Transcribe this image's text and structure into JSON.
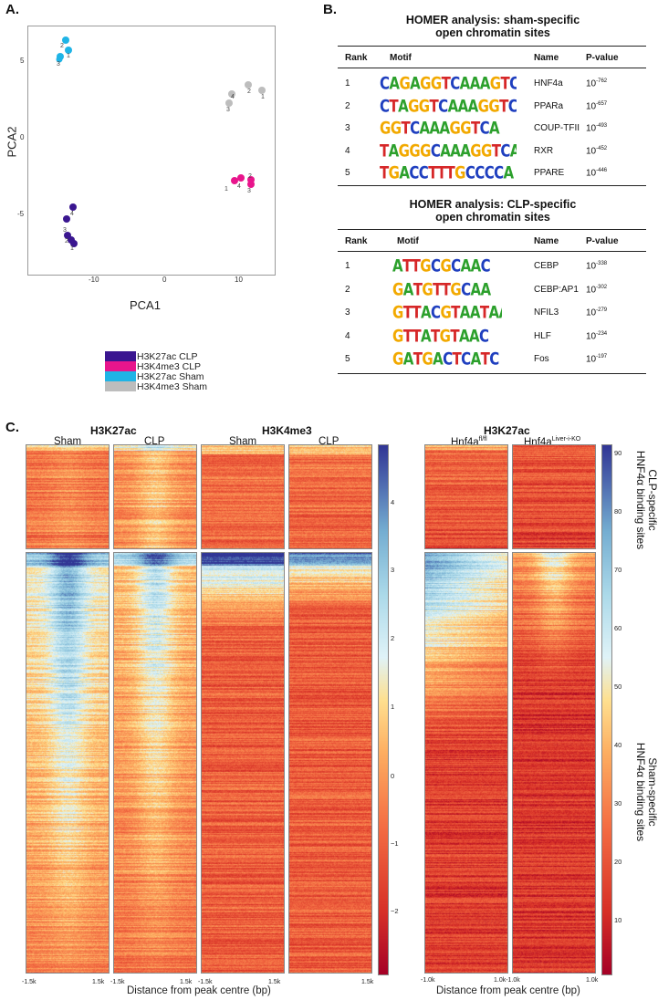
{
  "panels": {
    "a": "A.",
    "b": "B.",
    "c": "C."
  },
  "pca": {
    "xlabel": "PCA1",
    "ylabel": "PCA2",
    "y_ticks": [
      "5",
      "0",
      "-5"
    ],
    "x_ticks": [
      "-10",
      "0",
      "10"
    ],
    "legend": [
      {
        "label": "H3K27ac CLP",
        "color": "#3a1690"
      },
      {
        "label": "H3K4me3 CLP",
        "color": "#e8158c"
      },
      {
        "label": "H3K27ac Sham",
        "color": "#1fb4e6"
      },
      {
        "label": "H3K4me3 Sham",
        "color": "#bdbdbd"
      }
    ],
    "point_labels": [
      "2",
      "1",
      "3",
      "4",
      "2",
      "3",
      "1",
      "1",
      "4",
      "2",
      "3",
      "4",
      "3",
      "2",
      "1"
    ]
  },
  "homer_sham": {
    "title_line1": "HOMER analysis: sham-specific",
    "title_line2": "open chromatin sites",
    "headers": {
      "rank": "Rank",
      "motif": "Motif",
      "name": "Name",
      "pvalue": "P-value"
    },
    "rows": [
      {
        "rank": "1",
        "motif": "CAGAGGTCAAAGTCCA",
        "name": "HNF4a",
        "p_base": "10",
        "p_exp": "-762"
      },
      {
        "rank": "2",
        "motif": "CTAGGTCAAAGGTCA",
        "name": "PPARa",
        "p_base": "10",
        "p_exp": "-657"
      },
      {
        "rank": "3",
        "motif": "GGTCAAAGGTCA",
        "name": "COUP-TFII",
        "p_base": "10",
        "p_exp": "-493"
      },
      {
        "rank": "4",
        "motif": "TAGGGCAAAGGTCA",
        "name": "RXR",
        "p_base": "10",
        "p_exp": "-452"
      },
      {
        "rank": "5",
        "motif": "TGACCTTTGCCCCA",
        "name": "PPARE",
        "p_base": "10",
        "p_exp": "-446"
      }
    ]
  },
  "homer_clp": {
    "title_line1": "HOMER analysis: CLP-specific",
    "title_line2": "open chromatin sites",
    "headers": {
      "rank": "Rank",
      "motif": "Motif",
      "name": "Name",
      "pvalue": "P-value"
    },
    "rows": [
      {
        "rank": "1",
        "motif": "ATTGCGCAAC",
        "name": "CEBP",
        "p_base": "10",
        "p_exp": "-338"
      },
      {
        "rank": "2",
        "motif": "GATGTTGCAA",
        "name": "CEBP:AP1",
        "p_base": "10",
        "p_exp": "-302"
      },
      {
        "rank": "3",
        "motif": "GTTACGTAATAACTTA",
        "name": "NFIL3",
        "p_base": "10",
        "p_exp": "-279"
      },
      {
        "rank": "4",
        "motif": "GTTATGTAAC",
        "name": "HLF",
        "p_base": "10",
        "p_exp": "-234"
      },
      {
        "rank": "5",
        "motif": "GATGACTCATC",
        "name": "Fos",
        "p_base": "10",
        "p_exp": "-197"
      }
    ]
  },
  "heatmaps": {
    "left_group1": "H3K27ac",
    "left_group2": "H3K4me3",
    "right_group": "H3K27ac",
    "col_sham_1": "Sham",
    "col_clp_1": "CLP",
    "col_sham_2": "Sham",
    "col_clp_2": "CLP",
    "col_flfl_base": "Hnf4a",
    "col_flfl_sup": "fl/fl",
    "col_ko_base": "Hnf4a",
    "col_ko_sup": "Liver-i-KO",
    "left_cb_ticks": [
      "4",
      "3",
      "2",
      "1",
      "0",
      "−1",
      "−2"
    ],
    "right_cb_ticks": [
      "90",
      "80",
      "70",
      "60",
      "50",
      "40",
      "30",
      "20",
      "10"
    ],
    "left_x_ticks": [
      "-1.5k",
      "1.5k",
      "-1.5k",
      "1.5k",
      "-1.5k",
      "1.5k"
    ],
    "left_x_ticks_end": "1.5k",
    "right_x_ticks": [
      "-1.0k",
      "1.0k-1.0k",
      "1.0k"
    ],
    "xlabel_left": "Distance from peak centre (bp)",
    "xlabel_right": "Distance from peak centre (bp)",
    "side_clp_line1": "CLP-specific",
    "side_clp_line2": "HNF4α binding sites",
    "side_sham_line1": "Sham-specific",
    "side_sham_line2": "HNF4α binding sites"
  }
}
